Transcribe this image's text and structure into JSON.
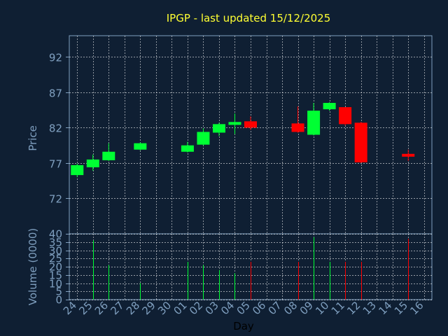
{
  "chart_data": {
    "type": "candlestick",
    "title": "IPGP - last updated 15/12/2025",
    "xlabel": "Day",
    "days": [
      "24",
      "25",
      "26",
      "27",
      "28",
      "29",
      "30",
      "01",
      "02",
      "03",
      "04",
      "05",
      "06",
      "07",
      "08",
      "09",
      "10",
      "11",
      "12",
      "13",
      "14",
      "15",
      "16"
    ],
    "price": {
      "ylabel": "Price",
      "yticks": [
        72,
        77,
        82,
        87,
        92
      ],
      "ylim": [
        67,
        95
      ],
      "candles": [
        {
          "day": 0,
          "open": 75.3,
          "close": 76.7,
          "high": 76.9,
          "low": 75.0
        },
        {
          "day": 1,
          "open": 76.4,
          "close": 77.5,
          "high": 78.2,
          "low": 75.9
        },
        {
          "day": 2,
          "open": 77.4,
          "close": 78.6,
          "high": 79.8,
          "low": 77.3
        },
        {
          "day": 4,
          "open": 78.9,
          "close": 79.8,
          "high": 79.9,
          "low": 78.8
        },
        {
          "day": 7,
          "open": 78.6,
          "close": 79.5,
          "high": 80.0,
          "low": 78.5
        },
        {
          "day": 8,
          "open": 79.6,
          "close": 81.4,
          "high": 81.9,
          "low": 79.5
        },
        {
          "day": 9,
          "open": 81.3,
          "close": 82.5,
          "high": 82.7,
          "low": 80.8
        },
        {
          "day": 10,
          "open": 82.4,
          "close": 82.8,
          "high": 84.0,
          "low": 81.1
        },
        {
          "day": 11,
          "open": 82.9,
          "close": 82.0,
          "high": 83.6,
          "low": 81.7
        },
        {
          "day": 14,
          "open": 82.6,
          "close": 81.4,
          "high": 85.0,
          "low": 81.3
        },
        {
          "day": 15,
          "open": 81.0,
          "close": 84.4,
          "high": 85.5,
          "low": 80.9
        },
        {
          "day": 16,
          "open": 84.6,
          "close": 85.5,
          "high": 85.6,
          "low": 84.4
        },
        {
          "day": 17,
          "open": 84.9,
          "close": 82.5,
          "high": 84.9,
          "low": 82.3
        },
        {
          "day": 18,
          "open": 82.7,
          "close": 77.1,
          "high": 82.8,
          "low": 77.0
        },
        {
          "day": 21,
          "open": 78.3,
          "close": 77.9,
          "high": 78.9,
          "low": 77.3
        }
      ]
    },
    "volume": {
      "ylabel": "Volume (0000)",
      "yticks": [
        0,
        5,
        10,
        15,
        20,
        25,
        30,
        35,
        40
      ],
      "ylim": [
        0,
        40
      ],
      "bars": [
        {
          "day": 1,
          "value": 36,
          "dir": "up"
        },
        {
          "day": 2,
          "value": 21,
          "dir": "up"
        },
        {
          "day": 4,
          "value": 10,
          "dir": "up"
        },
        {
          "day": 7,
          "value": 23,
          "dir": "up"
        },
        {
          "day": 8,
          "value": 21,
          "dir": "up"
        },
        {
          "day": 9,
          "value": 18,
          "dir": "up"
        },
        {
          "day": 10,
          "value": 16,
          "dir": "up"
        },
        {
          "day": 11,
          "value": 23,
          "dir": "down"
        },
        {
          "day": 14,
          "value": 23,
          "dir": "down"
        },
        {
          "day": 15,
          "value": 38,
          "dir": "up"
        },
        {
          "day": 16,
          "value": 23,
          "dir": "up"
        },
        {
          "day": 17,
          "value": 23,
          "dir": "down"
        },
        {
          "day": 18,
          "value": 23,
          "dir": "down"
        },
        {
          "day": 21,
          "value": 37,
          "dir": "down"
        }
      ]
    },
    "colors": {
      "background": "#0f1f33",
      "up": "#00ff33",
      "down": "#ff0000",
      "grid": "#ffffff",
      "axis": "#7f9fbf",
      "title": "#ffff33"
    },
    "grid": true
  }
}
